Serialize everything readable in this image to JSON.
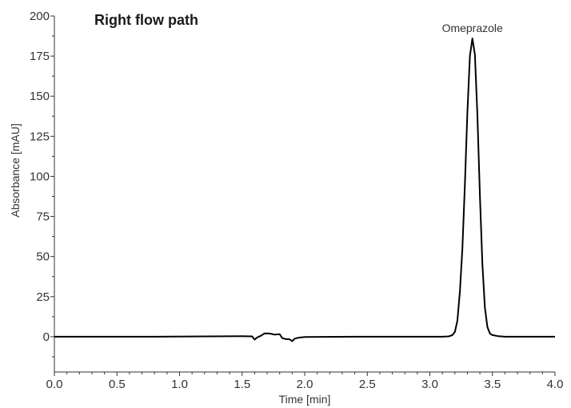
{
  "chart_data": {
    "type": "line",
    "title": "Right flow path",
    "xlabel": "Time [min]",
    "ylabel": "Absorbance [mAU]",
    "xlim": [
      0.0,
      4.0
    ],
    "ylim": [
      -22,
      200
    ],
    "x_ticks": [
      0.0,
      0.5,
      1.0,
      1.5,
      2.0,
      2.5,
      3.0,
      3.5,
      4.0
    ],
    "x_tick_labels": [
      "0.0",
      "0.5",
      "1.0",
      "1.5",
      "2.0",
      "2.5",
      "3.0",
      "3.5",
      "4.0"
    ],
    "y_ticks": [
      0,
      25,
      50,
      75,
      100,
      125,
      150,
      175,
      200
    ],
    "y_tick_labels": [
      "0",
      "25",
      "50",
      "75",
      "100",
      "125",
      "150",
      "175",
      "200"
    ],
    "grid": false,
    "legend": "none",
    "line_color": "#000000",
    "annotations": [
      {
        "text": "Omeprazole",
        "x": 3.34,
        "y": 186
      }
    ],
    "series": [
      {
        "x": [
          0.0,
          0.4,
          0.8,
          1.2,
          1.5,
          1.58,
          1.6,
          1.62,
          1.65,
          1.68,
          1.72,
          1.76,
          1.8,
          1.82,
          1.85,
          1.88,
          1.9,
          1.92,
          1.95,
          2.0,
          2.4,
          2.8,
          3.0,
          3.1,
          3.15,
          3.18,
          3.2,
          3.22,
          3.24,
          3.26,
          3.28,
          3.3,
          3.32,
          3.34,
          3.36,
          3.38,
          3.4,
          3.42,
          3.44,
          3.46,
          3.48,
          3.5,
          3.55,
          3.6,
          3.7,
          3.8,
          4.0
        ],
        "y": [
          0,
          0,
          0,
          0.2,
          0.3,
          0.2,
          -1.8,
          -0.5,
          0.6,
          2.1,
          2.0,
          1.3,
          1.6,
          -0.8,
          -1.5,
          -1.6,
          -2.8,
          -1.2,
          -0.6,
          -0.2,
          0,
          0,
          0,
          0,
          0.2,
          1.0,
          3.0,
          10,
          28,
          55,
          95,
          140,
          175,
          186,
          176,
          138,
          88,
          45,
          18,
          6,
          2,
          1,
          0.3,
          0,
          0,
          0,
          0
        ]
      }
    ]
  }
}
